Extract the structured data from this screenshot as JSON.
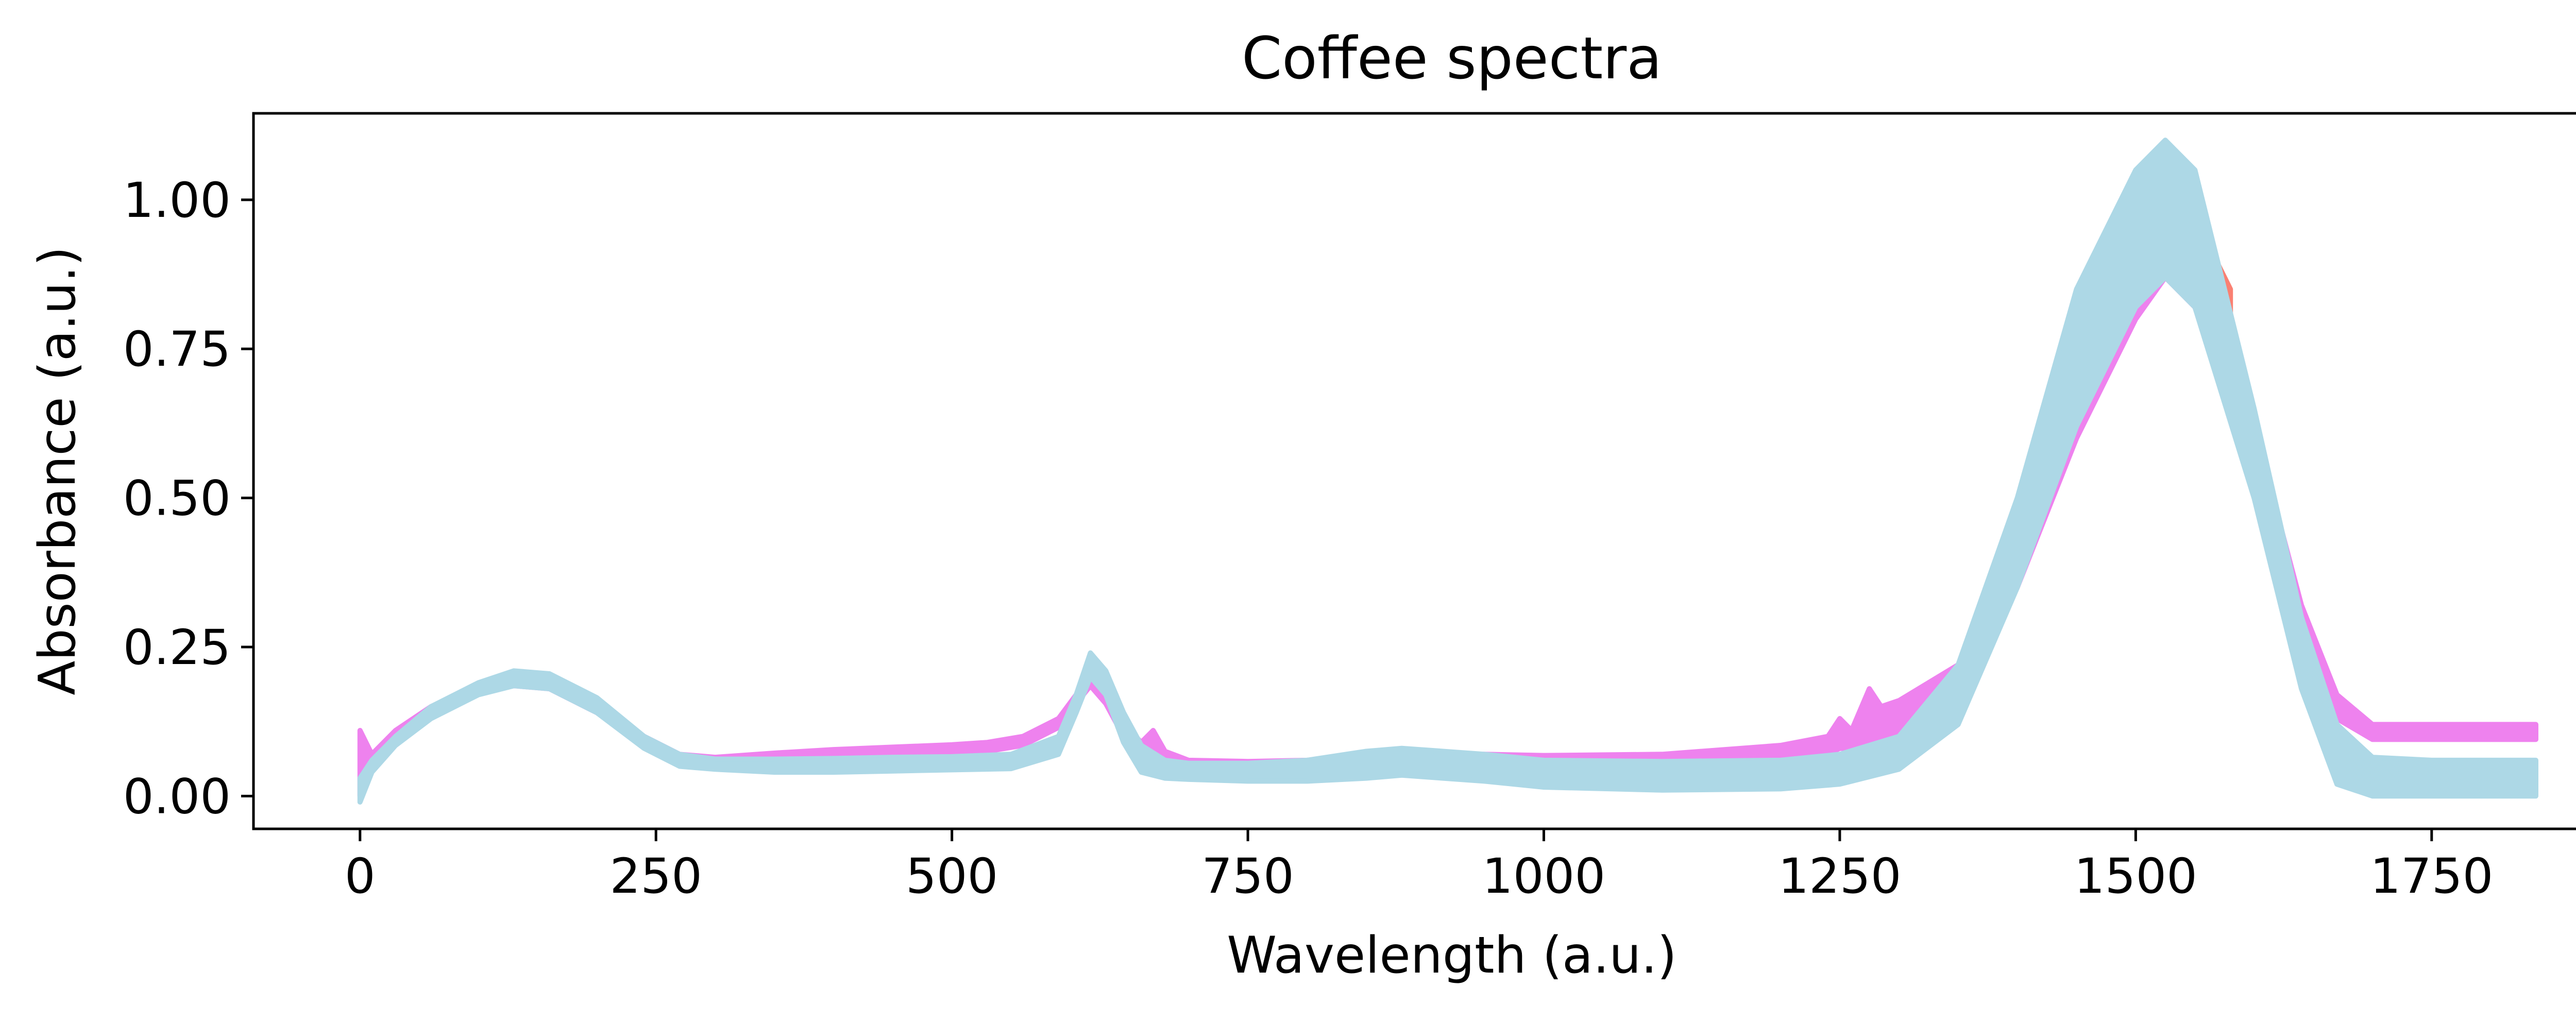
{
  "chart_data": {
    "type": "line",
    "title": "Coffee spectra",
    "xlabel": "Wavelength (a.u.)",
    "ylabel": "Absorbance (a.u.)",
    "xlim": [
      -90,
      1895
    ],
    "ylim": [
      -0.055,
      1.145
    ],
    "xticks": [
      0,
      250,
      500,
      750,
      1000,
      1250,
      1500,
      1750
    ],
    "xtick_labels": [
      "0",
      "250",
      "500",
      "750",
      "1000",
      "1250",
      "1500",
      "1750"
    ],
    "yticks": [
      0.0,
      0.25,
      0.5,
      0.75,
      1.0
    ],
    "ytick_labels": [
      "0.00",
      "0.25",
      "0.50",
      "0.75",
      "1.00"
    ],
    "grid": false,
    "series": [
      {
        "color": "#ee82ee",
        "x": [
          0,
          10,
          30,
          60,
          100,
          130,
          160,
          200,
          240,
          270,
          300,
          350,
          400,
          450,
          500,
          530,
          560,
          590,
          605,
          617,
          630,
          645,
          660,
          670,
          680,
          700,
          750,
          800,
          850,
          880,
          950,
          1000,
          1100,
          1200,
          1240,
          1250,
          1260,
          1275,
          1285,
          1300,
          1350,
          1400,
          1450,
          1500,
          1525,
          1550,
          1600,
          1640,
          1670,
          1700,
          1750,
          1800,
          1838
        ],
        "upper": [
          0.11,
          0.07,
          0.11,
          0.15,
          0.185,
          0.195,
          0.19,
          0.155,
          0.1,
          0.07,
          0.065,
          0.072,
          0.078,
          0.082,
          0.086,
          0.09,
          0.1,
          0.13,
          0.17,
          0.2,
          0.17,
          0.12,
          0.09,
          0.11,
          0.075,
          0.06,
          0.058,
          0.06,
          0.068,
          0.07,
          0.07,
          0.068,
          0.07,
          0.085,
          0.1,
          0.13,
          0.11,
          0.18,
          0.15,
          0.16,
          0.22,
          0.42,
          0.72,
          0.93,
          0.96,
          0.92,
          0.62,
          0.32,
          0.17,
          0.12,
          0.12,
          0.12,
          0.12
        ],
        "lower": [
          0.0,
          0.055,
          0.095,
          0.135,
          0.175,
          0.185,
          0.18,
          0.14,
          0.085,
          0.06,
          0.055,
          0.06,
          0.065,
          0.068,
          0.072,
          0.075,
          0.085,
          0.115,
          0.155,
          0.185,
          0.155,
          0.1,
          0.07,
          0.068,
          0.06,
          0.05,
          0.045,
          0.05,
          0.058,
          0.06,
          0.058,
          0.055,
          0.055,
          0.06,
          0.07,
          0.08,
          0.08,
          0.09,
          0.09,
          0.1,
          0.15,
          0.35,
          0.6,
          0.8,
          0.87,
          0.82,
          0.55,
          0.27,
          0.13,
          0.095,
          0.095,
          0.095,
          0.095
        ]
      },
      {
        "color": "#fa8072",
        "x": [
          1470,
          1490,
          1510,
          1525,
          1540,
          1560,
          1580
        ],
        "upper": [
          0.86,
          0.93,
          0.98,
          0.995,
          0.98,
          0.93,
          0.85
        ],
        "lower": [
          0.8,
          0.86,
          0.91,
          0.93,
          0.91,
          0.86,
          0.78
        ]
      },
      {
        "color": "#add8e6",
        "x": [
          0,
          10,
          30,
          60,
          100,
          130,
          160,
          200,
          240,
          270,
          300,
          350,
          400,
          450,
          500,
          550,
          590,
          605,
          617,
          630,
          645,
          660,
          680,
          700,
          750,
          800,
          850,
          880,
          950,
          1000,
          1100,
          1200,
          1250,
          1300,
          1350,
          1400,
          1450,
          1500,
          1525,
          1550,
          1600,
          1640,
          1670,
          1700,
          1750,
          1800,
          1838
        ],
        "upper": [
          0.03,
          0.06,
          0.1,
          0.15,
          0.19,
          0.21,
          0.205,
          0.165,
          0.1,
          0.07,
          0.062,
          0.062,
          0.063,
          0.065,
          0.066,
          0.07,
          0.1,
          0.17,
          0.24,
          0.21,
          0.14,
          0.085,
          0.06,
          0.055,
          0.055,
          0.06,
          0.075,
          0.08,
          0.07,
          0.06,
          0.058,
          0.06,
          0.07,
          0.1,
          0.22,
          0.5,
          0.85,
          1.05,
          1.1,
          1.05,
          0.65,
          0.3,
          0.12,
          0.065,
          0.06,
          0.06,
          0.06
        ],
        "lower": [
          -0.01,
          0.04,
          0.085,
          0.13,
          0.17,
          0.185,
          0.18,
          0.14,
          0.08,
          0.05,
          0.045,
          0.04,
          0.04,
          0.042,
          0.044,
          0.046,
          0.07,
          0.14,
          0.2,
          0.17,
          0.09,
          0.04,
          0.03,
          0.028,
          0.025,
          0.025,
          0.03,
          0.035,
          0.025,
          0.015,
          0.01,
          0.012,
          0.02,
          0.045,
          0.12,
          0.35,
          0.62,
          0.82,
          0.87,
          0.82,
          0.5,
          0.18,
          0.02,
          0.0,
          0.0,
          0.0,
          0.0
        ]
      }
    ]
  }
}
